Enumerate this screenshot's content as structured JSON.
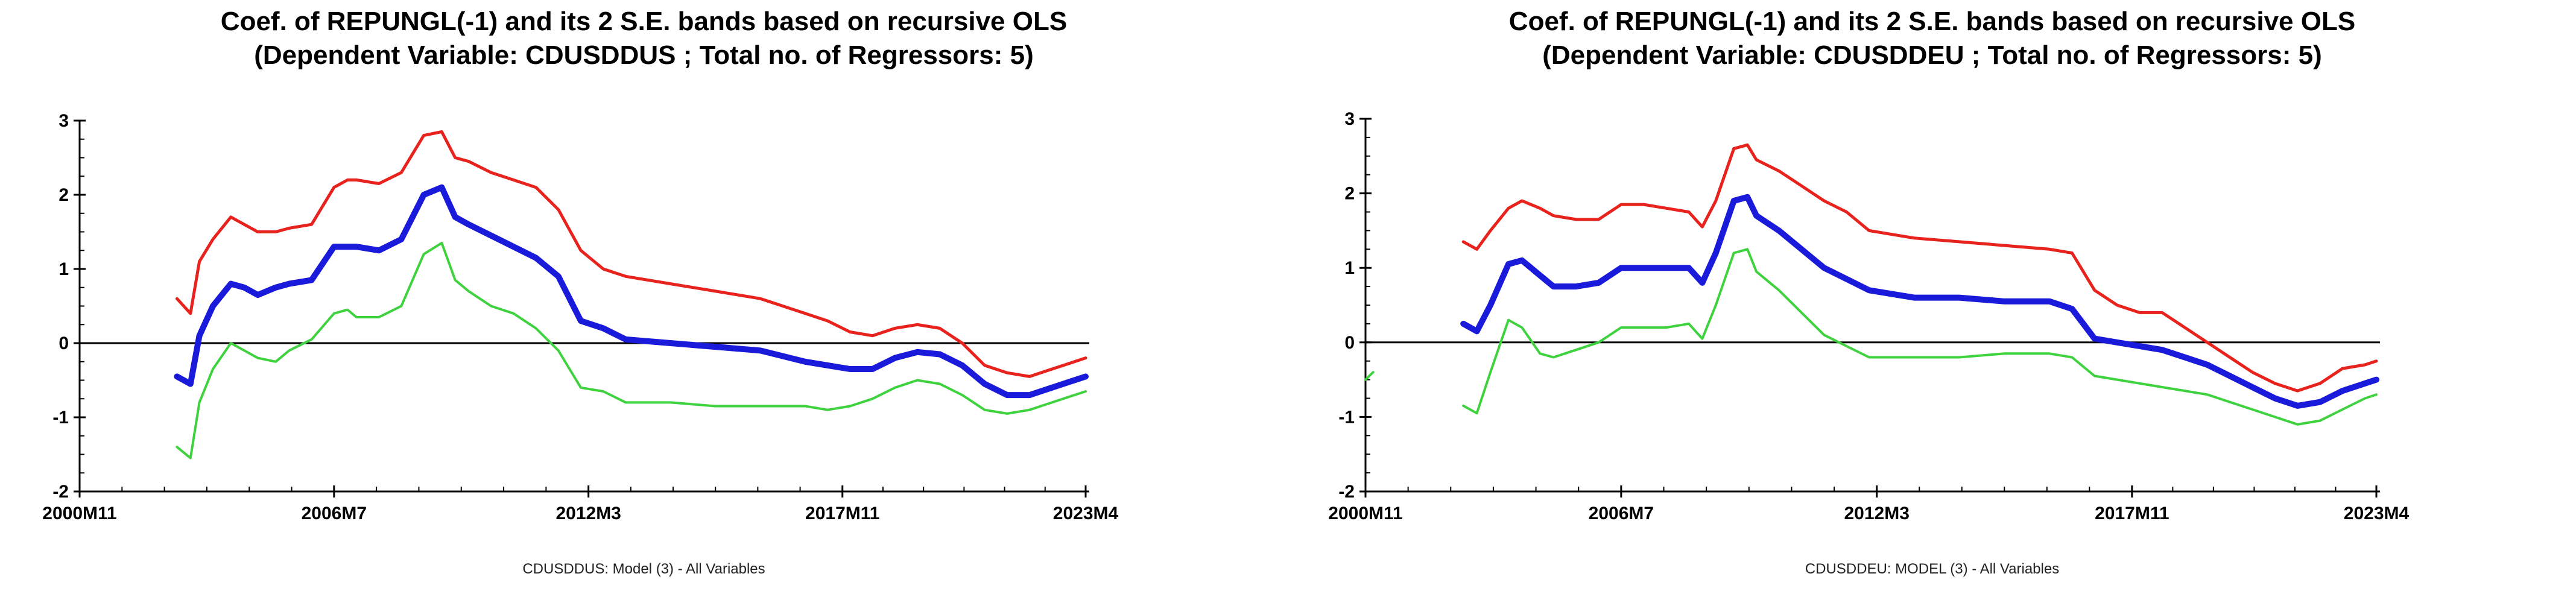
{
  "chart_data": [
    {
      "type": "line",
      "title": "Coef. of REPUNGL(-1) and its 2 S.E. bands based on recursive OLS",
      "subtitle": "(Dependent Variable: CDUSDDUS ; Total no. of Regressors: 5)",
      "caption": "CDUSDDUS: Model (3) - All Variables",
      "xlabel": "",
      "ylabel": "",
      "ylim": [
        -2,
        3
      ],
      "yticks": [
        -2,
        -1,
        0,
        1,
        2,
        3
      ],
      "xlim": [
        2000.83,
        2023.25
      ],
      "xticks": [
        {
          "label": "2000M11",
          "value": 2000.83
        },
        {
          "label": "2006M7",
          "value": 2006.5
        },
        {
          "label": "2012M3",
          "value": 2012.17
        },
        {
          "label": "2017M11",
          "value": 2017.83
        },
        {
          "label": "2023M4",
          "value": 2023.25
        }
      ],
      "zero_line": true,
      "grid": false,
      "series": [
        {
          "name": "Upper band (+2 S.E.)",
          "color": "#e8221c",
          "width": 5,
          "x": [
            2003.0,
            2003.3,
            2003.5,
            2003.8,
            2004.2,
            2004.5,
            2004.8,
            2005.2,
            2005.5,
            2006.0,
            2006.5,
            2006.8,
            2007.0,
            2007.5,
            2008.0,
            2008.5,
            2008.9,
            2009.2,
            2009.5,
            2010.0,
            2010.5,
            2011.0,
            2011.5,
            2012.0,
            2012.5,
            2013.0,
            2014.0,
            2015.0,
            2016.0,
            2017.0,
            2017.5,
            2018.0,
            2018.5,
            2019.0,
            2019.5,
            2020.0,
            2020.5,
            2021.0,
            2021.5,
            2022.0,
            2022.5,
            2023.0,
            2023.25
          ],
          "y": [
            0.6,
            0.4,
            1.1,
            1.4,
            1.7,
            1.6,
            1.5,
            1.5,
            1.55,
            1.6,
            2.1,
            2.2,
            2.2,
            2.15,
            2.3,
            2.8,
            2.85,
            2.5,
            2.45,
            2.3,
            2.2,
            2.1,
            1.8,
            1.25,
            1.0,
            0.9,
            0.8,
            0.7,
            0.6,
            0.4,
            0.3,
            0.15,
            0.1,
            0.2,
            0.25,
            0.2,
            0.0,
            -0.3,
            -0.4,
            -0.45,
            -0.35,
            -0.25,
            -0.2
          ]
        },
        {
          "name": "Coefficient",
          "color": "#1a1adb",
          "width": 10,
          "x": [
            2003.0,
            2003.3,
            2003.5,
            2003.8,
            2004.2,
            2004.5,
            2004.8,
            2005.2,
            2005.5,
            2006.0,
            2006.5,
            2006.8,
            2007.0,
            2007.5,
            2008.0,
            2008.5,
            2008.9,
            2009.2,
            2009.5,
            2010.0,
            2010.5,
            2011.0,
            2011.5,
            2012.0,
            2012.5,
            2013.0,
            2014.0,
            2015.0,
            2016.0,
            2017.0,
            2017.5,
            2018.0,
            2018.5,
            2019.0,
            2019.5,
            2020.0,
            2020.5,
            2021.0,
            2021.5,
            2022.0,
            2022.5,
            2023.0,
            2023.25
          ],
          "y": [
            -0.45,
            -0.55,
            0.1,
            0.5,
            0.8,
            0.75,
            0.65,
            0.75,
            0.8,
            0.85,
            1.3,
            1.3,
            1.3,
            1.25,
            1.4,
            2.0,
            2.1,
            1.7,
            1.6,
            1.45,
            1.3,
            1.15,
            0.9,
            0.3,
            0.2,
            0.05,
            0.0,
            -0.05,
            -0.1,
            -0.25,
            -0.3,
            -0.35,
            -0.35,
            -0.2,
            -0.12,
            -0.15,
            -0.3,
            -0.55,
            -0.7,
            -0.7,
            -0.6,
            -0.5,
            -0.45
          ]
        },
        {
          "name": "Lower band (-2 S.E.)",
          "color": "#3ed23e",
          "width": 4,
          "x": [
            2003.0,
            2003.3,
            2003.5,
            2003.8,
            2004.2,
            2004.5,
            2004.8,
            2005.2,
            2005.5,
            2006.0,
            2006.5,
            2006.8,
            2007.0,
            2007.5,
            2008.0,
            2008.5,
            2008.9,
            2009.2,
            2009.5,
            2010.0,
            2010.5,
            2011.0,
            2011.5,
            2012.0,
            2012.5,
            2013.0,
            2014.0,
            2015.0,
            2016.0,
            2017.0,
            2017.5,
            2018.0,
            2018.5,
            2019.0,
            2019.5,
            2020.0,
            2020.5,
            2021.0,
            2021.5,
            2022.0,
            2022.5,
            2023.0,
            2023.25
          ],
          "y": [
            -1.4,
            -1.55,
            -0.8,
            -0.35,
            0.0,
            -0.1,
            -0.2,
            -0.25,
            -0.1,
            0.05,
            0.4,
            0.45,
            0.35,
            0.35,
            0.5,
            1.2,
            1.35,
            0.85,
            0.7,
            0.5,
            0.4,
            0.2,
            -0.1,
            -0.6,
            -0.65,
            -0.8,
            -0.8,
            -0.85,
            -0.85,
            -0.85,
            -0.9,
            -0.85,
            -0.75,
            -0.6,
            -0.5,
            -0.55,
            -0.7,
            -0.9,
            -0.95,
            -0.9,
            -0.8,
            -0.7,
            -0.65
          ]
        }
      ]
    },
    {
      "type": "line",
      "title": "Coef. of REPUNGL(-1) and its 2 S.E. bands based on recursive OLS",
      "subtitle": "(Dependent Variable: CDUSDDEU ; Total no. of Regressors: 5)",
      "caption": "CDUSDDEU: MODEL (3) - All Variables",
      "xlabel": "",
      "ylabel": "",
      "ylim": [
        -2,
        3
      ],
      "yticks": [
        -2,
        -1,
        0,
        1,
        2,
        3
      ],
      "xlim": [
        2000.83,
        2023.25
      ],
      "xticks": [
        {
          "label": "2000M11",
          "value": 2000.83
        },
        {
          "label": "2006M7",
          "value": 2006.5
        },
        {
          "label": "2012M3",
          "value": 2012.17
        },
        {
          "label": "2017M11",
          "value": 2017.83
        },
        {
          "label": "2023M4",
          "value": 2023.25
        }
      ],
      "zero_line": true,
      "grid": false,
      "series": [
        {
          "name": "Upper band (+2 S.E.)",
          "color": "#e8221c",
          "width": 5,
          "x": [
            2003.0,
            2003.3,
            2003.6,
            2004.0,
            2004.3,
            2004.7,
            2005.0,
            2005.5,
            2006.0,
            2006.5,
            2007.0,
            2007.5,
            2008.0,
            2008.3,
            2008.6,
            2009.0,
            2009.3,
            2009.5,
            2010.0,
            2010.5,
            2011.0,
            2011.5,
            2012.0,
            2013.0,
            2014.0,
            2015.0,
            2016.0,
            2016.5,
            2017.0,
            2017.5,
            2018.0,
            2018.5,
            2019.0,
            2019.5,
            2020.0,
            2020.5,
            2021.0,
            2021.5,
            2022.0,
            2022.5,
            2023.0,
            2023.25
          ],
          "y": [
            1.35,
            1.25,
            1.5,
            1.8,
            1.9,
            1.8,
            1.7,
            1.65,
            1.65,
            1.85,
            1.85,
            1.8,
            1.75,
            1.55,
            1.9,
            2.6,
            2.65,
            2.45,
            2.3,
            2.1,
            1.9,
            1.75,
            1.5,
            1.4,
            1.35,
            1.3,
            1.25,
            1.2,
            0.7,
            0.5,
            0.4,
            0.4,
            0.2,
            0.0,
            -0.2,
            -0.4,
            -0.55,
            -0.65,
            -0.55,
            -0.35,
            -0.3,
            -0.25
          ]
        },
        {
          "name": "Coefficient",
          "color": "#1a1adb",
          "width": 10,
          "x": [
            2003.0,
            2003.3,
            2003.6,
            2004.0,
            2004.3,
            2004.7,
            2005.0,
            2005.5,
            2006.0,
            2006.5,
            2007.0,
            2007.5,
            2008.0,
            2008.3,
            2008.6,
            2009.0,
            2009.3,
            2009.5,
            2010.0,
            2010.5,
            2011.0,
            2011.5,
            2012.0,
            2013.0,
            2014.0,
            2015.0,
            2016.0,
            2016.5,
            2017.0,
            2017.5,
            2018.0,
            2018.5,
            2019.0,
            2019.5,
            2020.0,
            2020.5,
            2021.0,
            2021.5,
            2022.0,
            2022.5,
            2023.0,
            2023.25
          ],
          "y": [
            0.25,
            0.15,
            0.5,
            1.05,
            1.1,
            0.9,
            0.75,
            0.75,
            0.8,
            1.0,
            1.0,
            1.0,
            1.0,
            0.8,
            1.2,
            1.9,
            1.95,
            1.7,
            1.5,
            1.25,
            1.0,
            0.85,
            0.7,
            0.6,
            0.6,
            0.55,
            0.55,
            0.45,
            0.05,
            0.0,
            -0.05,
            -0.1,
            -0.2,
            -0.3,
            -0.45,
            -0.6,
            -0.75,
            -0.85,
            -0.8,
            -0.65,
            -0.55,
            -0.5
          ]
        },
        {
          "name": "Lower band (-2 S.E.)",
          "color": "#3ed23e",
          "width": 4,
          "x": [
            2003.0,
            2003.3,
            2003.6,
            2004.0,
            2004.3,
            2004.7,
            2005.0,
            2005.5,
            2006.0,
            2006.5,
            2007.0,
            2007.5,
            2008.0,
            2008.3,
            2008.6,
            2009.0,
            2009.3,
            2009.5,
            2010.0,
            2010.5,
            2011.0,
            2011.5,
            2012.0,
            2013.0,
            2014.0,
            2015.0,
            2016.0,
            2016.5,
            2017.0,
            2017.5,
            2018.0,
            2018.5,
            2019.0,
            2019.5,
            2020.0,
            2020.5,
            2021.0,
            2021.5,
            2022.0,
            2022.5,
            2023.0,
            2023.25
          ],
          "y": [
            -0.85,
            -0.95,
            -0.4,
            0.3,
            0.2,
            -0.15,
            -0.2,
            -0.1,
            0.0,
            0.2,
            0.2,
            0.2,
            0.25,
            0.05,
            0.5,
            1.2,
            1.25,
            0.95,
            0.7,
            0.4,
            0.1,
            -0.05,
            -0.2,
            -0.2,
            -0.2,
            -0.15,
            -0.15,
            -0.2,
            -0.45,
            -0.5,
            -0.55,
            -0.6,
            -0.65,
            -0.7,
            -0.8,
            -0.9,
            -1.0,
            -1.1,
            -1.05,
            -0.9,
            -0.75,
            -0.7
          ]
        },
        {
          "name": "Lower band start fragment",
          "color": "#3ed23e",
          "width": 4,
          "x": [
            2000.83,
            2001.0
          ],
          "y": [
            -0.5,
            -0.4
          ]
        }
      ]
    }
  ]
}
